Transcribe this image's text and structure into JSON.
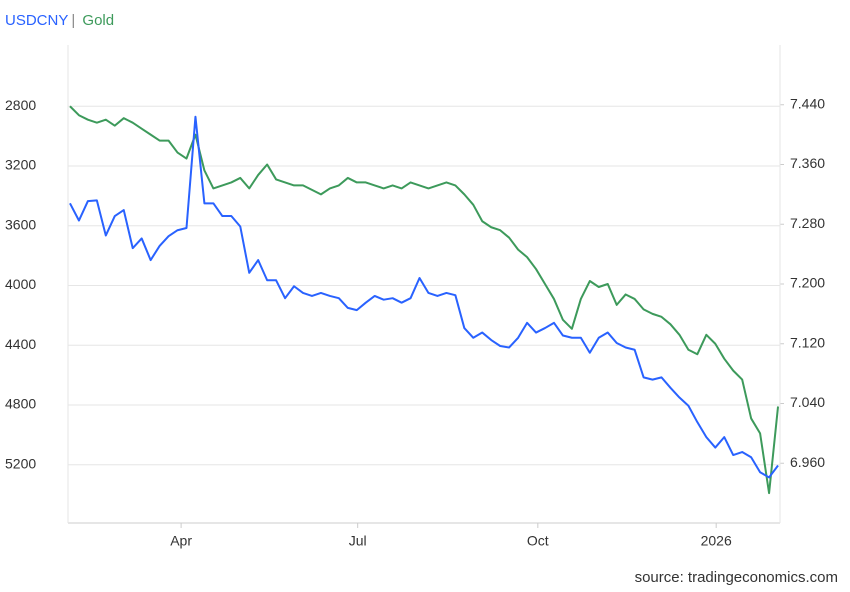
{
  "chart_data": {
    "type": "line",
    "legend_separator": "|",
    "source": "source: tradingeconomics.com",
    "xlim": [
      -0.22,
      79.22
    ],
    "xticks": [
      {
        "value": 12.4,
        "label": "Apr"
      },
      {
        "value": 32.1,
        "label": "Jul"
      },
      {
        "value": 52.2,
        "label": "Oct"
      },
      {
        "value": 72.1,
        "label": "2026"
      }
    ],
    "ylim": [
      2390,
      5590
    ],
    "y_inverted": true,
    "yticks": [
      2800,
      3200,
      3600,
      4000,
      4400,
      4800,
      5200
    ],
    "y2lim": [
      6.88,
      7.52
    ],
    "y2ticks": [
      {
        "value": 7.44,
        "label": "7.440"
      },
      {
        "value": 7.36,
        "label": "7.360"
      },
      {
        "value": 7.28,
        "label": "7.280"
      },
      {
        "value": 7.2,
        "label": "7.200"
      },
      {
        "value": 7.12,
        "label": "7.120"
      },
      {
        "value": 7.04,
        "label": "7.040"
      },
      {
        "value": 6.96,
        "label": "6.960"
      }
    ],
    "grid": true,
    "series": [
      {
        "name": "USDCNY",
        "color": "#2962ff",
        "axis": "y2",
        "values": [
          7.308,
          7.285,
          7.311,
          7.312,
          7.265,
          7.291,
          7.299,
          7.248,
          7.261,
          7.232,
          7.251,
          7.264,
          7.272,
          7.275,
          7.424,
          7.308,
          7.308,
          7.291,
          7.291,
          7.277,
          7.215,
          7.232,
          7.205,
          7.205,
          7.181,
          7.197,
          7.188,
          7.184,
          7.188,
          7.184,
          7.181,
          7.168,
          7.165,
          7.175,
          7.184,
          7.179,
          7.181,
          7.175,
          7.181,
          7.208,
          7.188,
          7.184,
          7.188,
          7.185,
          7.141,
          7.128,
          7.135,
          7.125,
          7.117,
          7.115,
          7.128,
          7.148,
          7.135,
          7.141,
          7.148,
          7.131,
          7.128,
          7.128,
          7.108,
          7.128,
          7.135,
          7.121,
          7.115,
          7.112,
          7.075,
          7.072,
          7.075,
          7.061,
          7.048,
          7.037,
          7.015,
          6.995,
          6.981,
          6.995,
          6.971,
          6.975,
          6.968,
          6.948,
          6.941,
          6.957
        ]
      },
      {
        "name": "Gold",
        "color": "#3d9a5b",
        "axis": "y",
        "values": [
          2800,
          2860,
          2890,
          2910,
          2890,
          2930,
          2880,
          2910,
          2950,
          2990,
          3030,
          3030,
          3110,
          3150,
          2990,
          3230,
          3350,
          3330,
          3310,
          3280,
          3350,
          3260,
          3190,
          3290,
          3310,
          3330,
          3330,
          3360,
          3390,
          3350,
          3330,
          3280,
          3310,
          3310,
          3330,
          3350,
          3330,
          3350,
          3310,
          3330,
          3350,
          3330,
          3310,
          3330,
          3390,
          3460,
          3570,
          3610,
          3630,
          3680,
          3760,
          3810,
          3890,
          3990,
          4090,
          4230,
          4290,
          4090,
          3970,
          4010,
          3990,
          4130,
          4060,
          4090,
          4160,
          4190,
          4210,
          4260,
          4330,
          4430,
          4460,
          4330,
          4390,
          4490,
          4570,
          4630,
          4890,
          4990,
          5390,
          4810
        ]
      }
    ]
  }
}
